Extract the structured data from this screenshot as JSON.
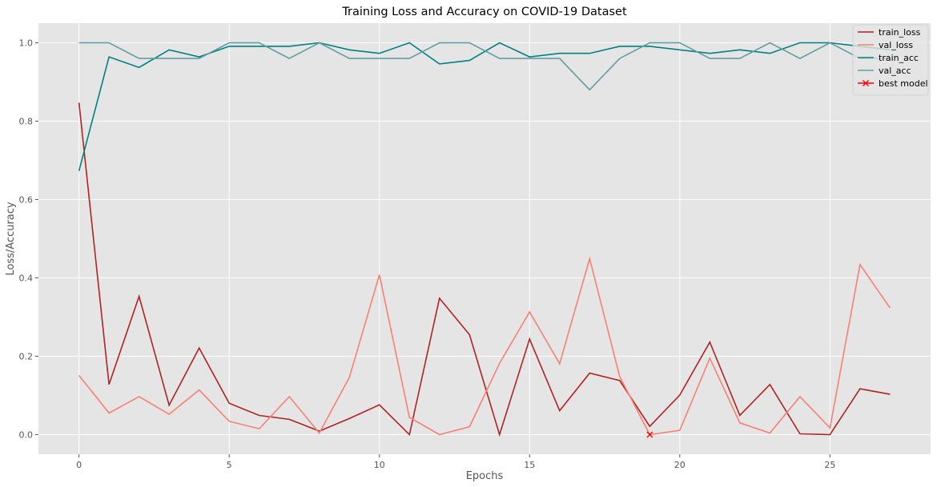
{
  "chart_data": {
    "type": "line",
    "title": "Training Loss and Accuracy on COVID-19 Dataset",
    "xlabel": "Epochs",
    "ylabel": "Loss/Accuracy",
    "xlim": [
      -1.35,
      28.35
    ],
    "ylim": [
      -0.05,
      1.05
    ],
    "xticks": [
      0,
      5,
      10,
      15,
      20,
      25
    ],
    "yticks": [
      0.0,
      0.2,
      0.4,
      0.6,
      0.8,
      1.0
    ],
    "ytick_labels": [
      "0.0",
      "0.2",
      "0.4",
      "0.6",
      "0.8",
      "1.0"
    ],
    "grid": true,
    "legend_position": "top-right",
    "colors": {
      "background": "#e5e5e5",
      "grid": "#ffffff",
      "train_loss": "#b22222",
      "val_loss": "#fa8072",
      "train_acc": "#008080",
      "val_acc": "#5f9ea0",
      "best_model": "#ff0000"
    },
    "x": [
      0,
      1,
      2,
      3,
      4,
      5,
      6,
      7,
      8,
      9,
      10,
      11,
      12,
      13,
      14,
      15,
      16,
      17,
      18,
      19,
      20,
      21,
      22,
      23,
      24,
      25,
      26,
      27
    ],
    "series": [
      {
        "name": "train_loss",
        "color_key": "train_loss",
        "values": [
          0.847,
          0.128,
          0.353,
          0.075,
          0.221,
          0.08,
          0.049,
          0.039,
          0.009,
          0.041,
          0.076,
          0.0,
          0.348,
          0.255,
          0.0,
          0.244,
          0.061,
          0.157,
          0.138,
          0.021,
          0.101,
          0.236,
          0.049,
          0.128,
          0.002,
          0.0,
          0.117,
          0.103
        ]
      },
      {
        "name": "val_loss",
        "color_key": "val_loss",
        "values": [
          0.151,
          0.055,
          0.097,
          0.052,
          0.114,
          0.034,
          0.015,
          0.097,
          0.004,
          0.146,
          0.408,
          0.044,
          0.0,
          0.02,
          0.182,
          0.313,
          0.181,
          0.449,
          0.148,
          0.0,
          0.011,
          0.195,
          0.03,
          0.004,
          0.097,
          0.017,
          0.434,
          0.323
        ]
      },
      {
        "name": "train_acc",
        "color_key": "train_acc",
        "values": [
          0.673,
          0.964,
          0.937,
          0.982,
          0.964,
          0.991,
          0.991,
          0.991,
          1.0,
          0.982,
          0.973,
          1.0,
          0.946,
          0.955,
          1.0,
          0.964,
          0.973,
          0.973,
          0.991,
          0.991,
          0.982,
          0.973,
          0.982,
          0.973,
          1.0,
          1.0,
          0.991,
          0.982
        ]
      },
      {
        "name": "val_acc",
        "color_key": "val_acc",
        "values": [
          1.0,
          1.0,
          0.96,
          0.96,
          0.96,
          1.0,
          1.0,
          0.96,
          1.0,
          0.96,
          0.96,
          0.96,
          1.0,
          1.0,
          0.96,
          0.96,
          0.96,
          0.88,
          0.96,
          1.0,
          1.0,
          0.96,
          0.96,
          1.0,
          0.96,
          1.0,
          0.96,
          0.96
        ]
      }
    ],
    "markers": [
      {
        "name": "best model",
        "color_key": "best_model",
        "x": 19,
        "y": 0.0,
        "marker": "x"
      }
    ]
  }
}
